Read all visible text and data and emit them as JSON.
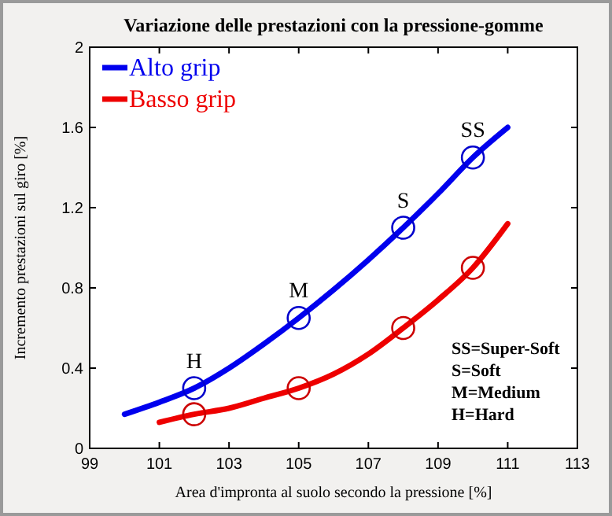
{
  "chart_data": {
    "type": "line",
    "title": "Variazione delle prestazioni con la pressione-gomme",
    "xlabel": "Area d'impronta al suolo secondo la pressione   [%]",
    "ylabel": "Incremento prestazioni sul giro  [%]",
    "xlim": [
      99,
      113
    ],
    "xticks": [
      99,
      101,
      103,
      105,
      107,
      109,
      111,
      113
    ],
    "ylim": [
      0,
      2
    ],
    "yticks": [
      0,
      0.4,
      0.8,
      1.2,
      1.6,
      2
    ],
    "grid": false,
    "legend": "top left",
    "series": [
      {
        "name": "Alto grip",
        "color": "#0000ee",
        "x": [
          100,
          101,
          102,
          103,
          104,
          105,
          106,
          107,
          108,
          109,
          110,
          111
        ],
        "values": [
          0.17,
          0.23,
          0.3,
          0.4,
          0.52,
          0.65,
          0.79,
          0.94,
          1.1,
          1.27,
          1.45,
          1.6
        ]
      },
      {
        "name": "Basso grip",
        "color": "#ee0000",
        "x": [
          101,
          102,
          103,
          104,
          105,
          106,
          107,
          108,
          109,
          110,
          111
        ],
        "values": [
          0.13,
          0.17,
          0.2,
          0.25,
          0.3,
          0.37,
          0.47,
          0.6,
          0.74,
          0.9,
          1.12
        ]
      },
      {
        "type": "scatter",
        "marker": "circle",
        "color": "#0000cc",
        "x": [
          102,
          105,
          108,
          110
        ],
        "values": [
          0.3,
          0.65,
          1.1,
          1.45
        ]
      },
      {
        "type": "scatter",
        "marker": "circle",
        "color": "#cc0000",
        "x": [
          102,
          105,
          108,
          110
        ],
        "values": [
          0.17,
          0.3,
          0.6,
          0.9
        ]
      }
    ],
    "annotations": [
      {
        "text": "H",
        "x": 102,
        "y": 0.3
      },
      {
        "text": "M",
        "x": 105,
        "y": 0.65
      },
      {
        "text": "S",
        "x": 108,
        "y": 1.1
      },
      {
        "text": "SS",
        "x": 110,
        "y": 1.45
      },
      "SS=Super-Soft",
      "S=Soft",
      "M=Medium",
      "H=Hard"
    ]
  }
}
